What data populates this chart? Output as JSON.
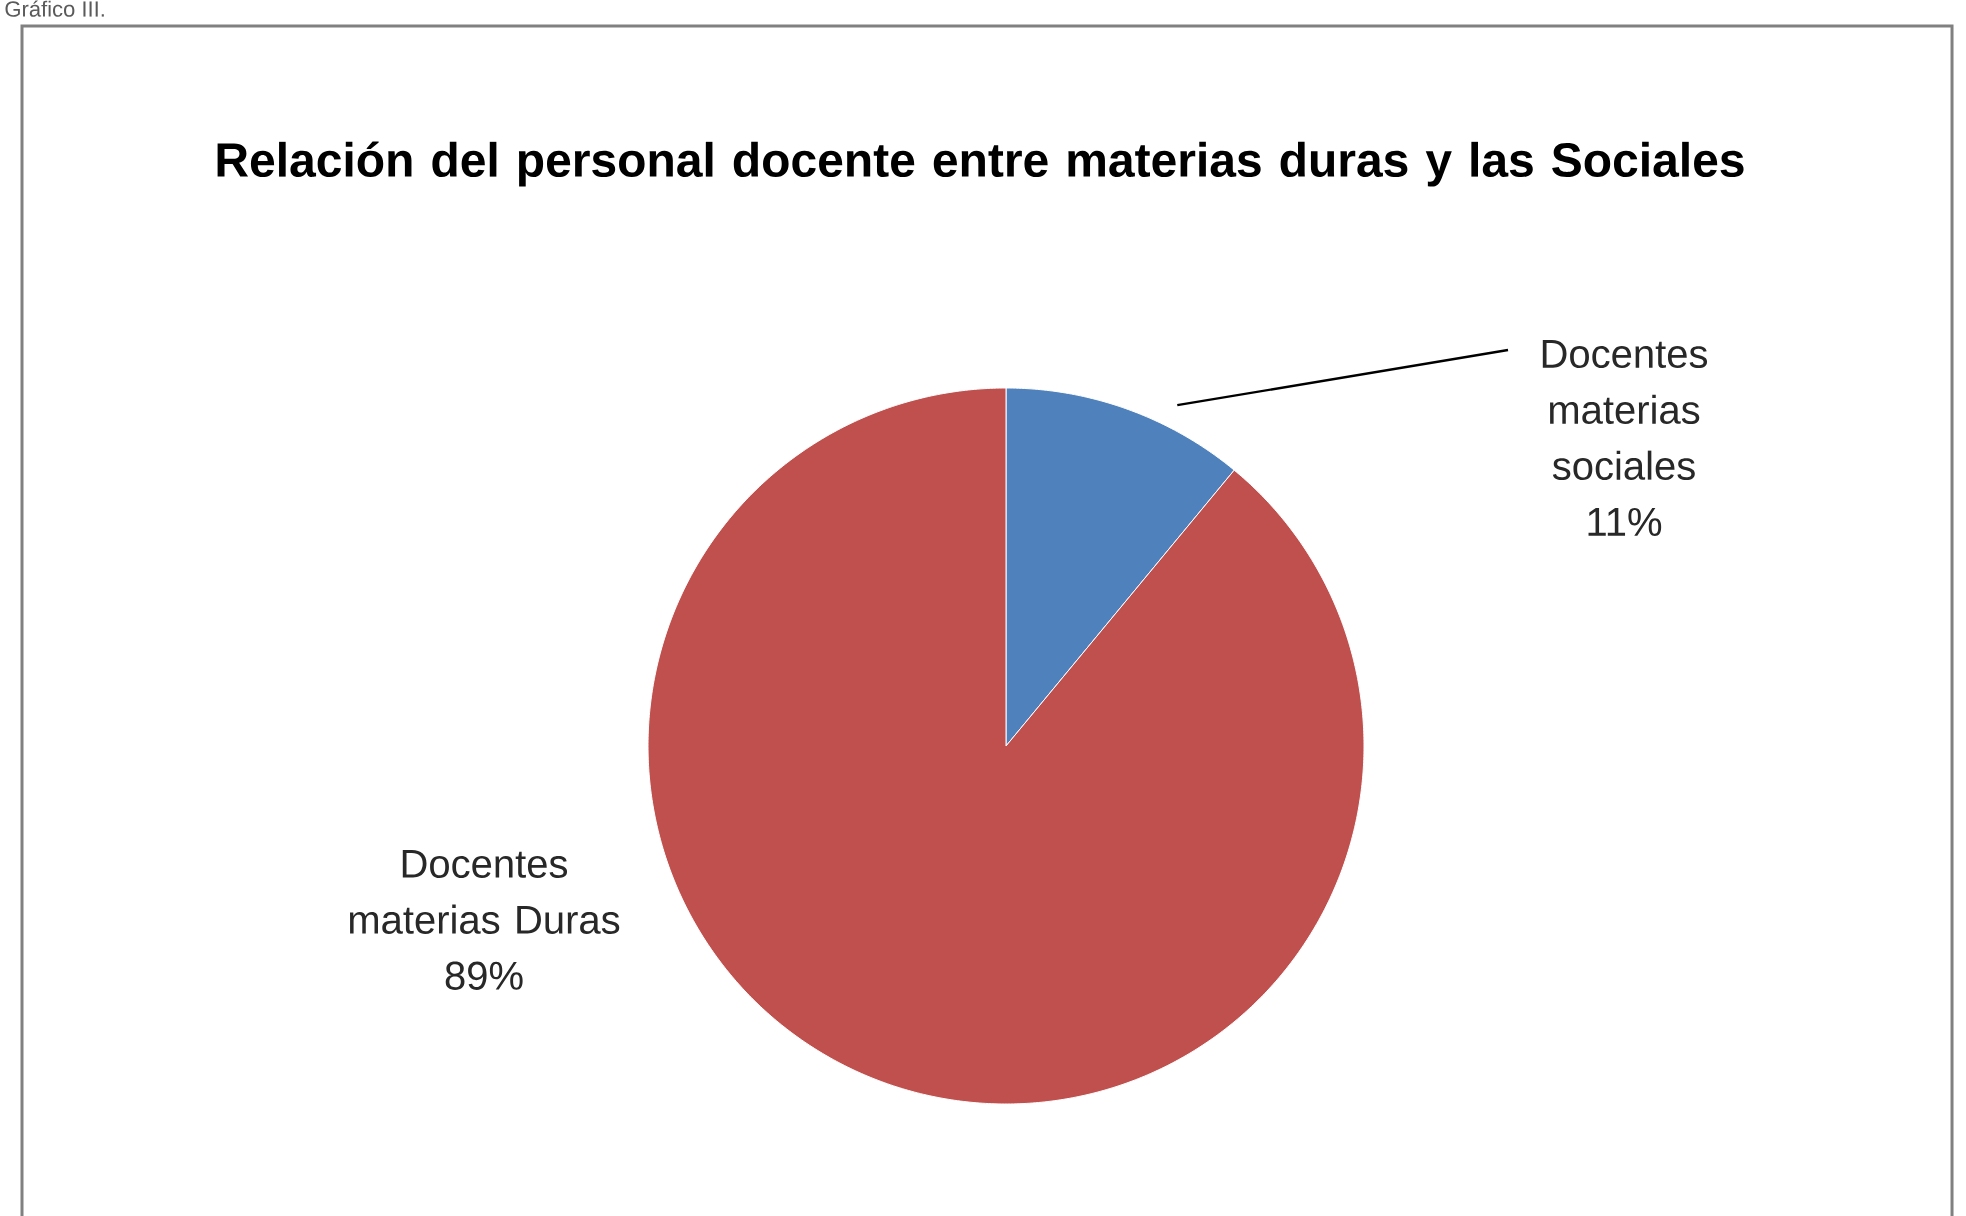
{
  "chart_data": {
    "type": "pie",
    "title": "Relación  del personal docente entre materias duras y las Sociales",
    "categories": [
      "Docentes materias sociales",
      "Docentes materias Duras"
    ],
    "values": [
      11,
      89
    ],
    "value_labels": [
      "11%",
      "89%"
    ],
    "colors": [
      "#4f81bd",
      "#c0504d"
    ],
    "annotations": [
      "Gráfico III."
    ]
  }
}
